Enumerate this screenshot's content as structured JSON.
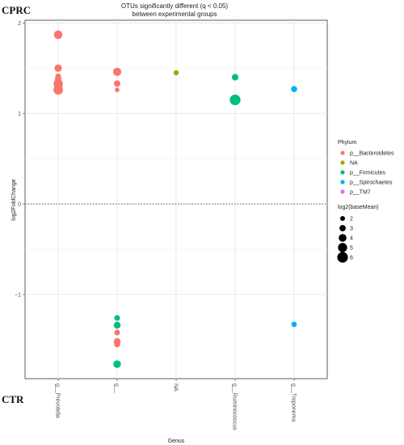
{
  "chart_data": {
    "type": "scatter",
    "title": "OTUs significantly different (q < 0.05)",
    "subtitle": "between experimental groups",
    "xlabel": "Genus",
    "ylabel": "log2FoldChange",
    "categories": [
      "g__Prevotella",
      "g__",
      "NA",
      "g__Ruminococcus",
      "g__Treponema"
    ],
    "ylim": [
      -1.93,
      2.03
    ],
    "yticks": [
      {
        "value": -1,
        "label": "−1"
      },
      {
        "value": 0,
        "label": "0"
      },
      {
        "value": 1,
        "label": "1"
      },
      {
        "value": 2,
        "label": "2"
      }
    ],
    "grid": true,
    "reference_line": {
      "y": 0,
      "style": "dotted"
    },
    "group_labels": {
      "top": "CPRC",
      "bottom": "CTR"
    },
    "legend_color": {
      "title": "Phylum",
      "entries": [
        {
          "label": "p__Bacteroidetes",
          "color": "#F8766D"
        },
        {
          "label": "NA",
          "color": "#A3A500"
        },
        {
          "label": "p__Firmicutes",
          "color": "#00BF7D"
        },
        {
          "label": "p__Spirochaetes",
          "color": "#00B0F6"
        },
        {
          "label": "p__TM7",
          "color": "#E76BF3"
        }
      ]
    },
    "legend_size": {
      "title": "log2(baseMean)",
      "entries": [
        {
          "label": "2",
          "value": 2
        },
        {
          "label": "3",
          "value": 3
        },
        {
          "label": "4",
          "value": 4
        },
        {
          "label": "5",
          "value": 5
        },
        {
          "label": "6",
          "value": 6
        }
      ]
    },
    "points": [
      {
        "genus": "g__Prevotella",
        "y": 1.87,
        "baseMean": 4.5,
        "phylum": "p__Bacteroidetes"
      },
      {
        "genus": "g__Prevotella",
        "y": 1.5,
        "baseMean": 3.8,
        "phylum": "p__Bacteroidetes"
      },
      {
        "genus": "g__Prevotella",
        "y": 1.41,
        "baseMean": 2.6,
        "phylum": "p__Bacteroidetes"
      },
      {
        "genus": "g__Prevotella",
        "y": 1.38,
        "baseMean": 3.2,
        "phylum": "p__Bacteroidetes"
      },
      {
        "genus": "g__Prevotella",
        "y": 1.33,
        "baseMean": 5.0,
        "phylum": "p__Bacteroidetes"
      },
      {
        "genus": "g__Prevotella",
        "y": 1.3,
        "baseMean": 4.6,
        "phylum": "p__Bacteroidetes"
      },
      {
        "genus": "g__Prevotella",
        "y": 1.26,
        "baseMean": 5.2,
        "phylum": "p__Bacteroidetes"
      },
      {
        "genus": "g__",
        "y": 1.46,
        "baseMean": 4.3,
        "phylum": "p__Bacteroidetes"
      },
      {
        "genus": "g__",
        "y": 1.33,
        "baseMean": 3.1,
        "phylum": "p__Bacteroidetes"
      },
      {
        "genus": "g__",
        "y": 1.26,
        "baseMean": 1.8,
        "phylum": "p__Bacteroidetes"
      },
      {
        "genus": "g__",
        "y": -1.26,
        "baseMean": 2.6,
        "phylum": "p__Firmicutes"
      },
      {
        "genus": "g__",
        "y": -1.34,
        "baseMean": 3.4,
        "phylum": "p__Firmicutes"
      },
      {
        "genus": "g__",
        "y": -1.42,
        "baseMean": 2.6,
        "phylum": "p__Bacteroidetes"
      },
      {
        "genus": "g__",
        "y": -1.52,
        "baseMean": 3.4,
        "phylum": "p__Bacteroidetes"
      },
      {
        "genus": "g__",
        "y": -1.55,
        "baseMean": 2.9,
        "phylum": "p__Bacteroidetes"
      },
      {
        "genus": "g__",
        "y": -1.77,
        "baseMean": 3.9,
        "phylum": "p__Firmicutes"
      },
      {
        "genus": "NA",
        "y": 1.45,
        "baseMean": 2.2,
        "phylum": "NA"
      },
      {
        "genus": "g__Ruminococcus",
        "y": 1.4,
        "baseMean": 3.2,
        "phylum": "p__Firmicutes"
      },
      {
        "genus": "g__Ruminococcus",
        "y": 1.15,
        "baseMean": 6.0,
        "phylum": "p__Firmicutes"
      },
      {
        "genus": "g__Treponema",
        "y": 1.27,
        "baseMean": 2.9,
        "phylum": "p__Spirochaetes"
      },
      {
        "genus": "g__Treponema",
        "y": -1.33,
        "baseMean": 2.4,
        "phylum": "p__Spirochaetes"
      }
    ]
  }
}
